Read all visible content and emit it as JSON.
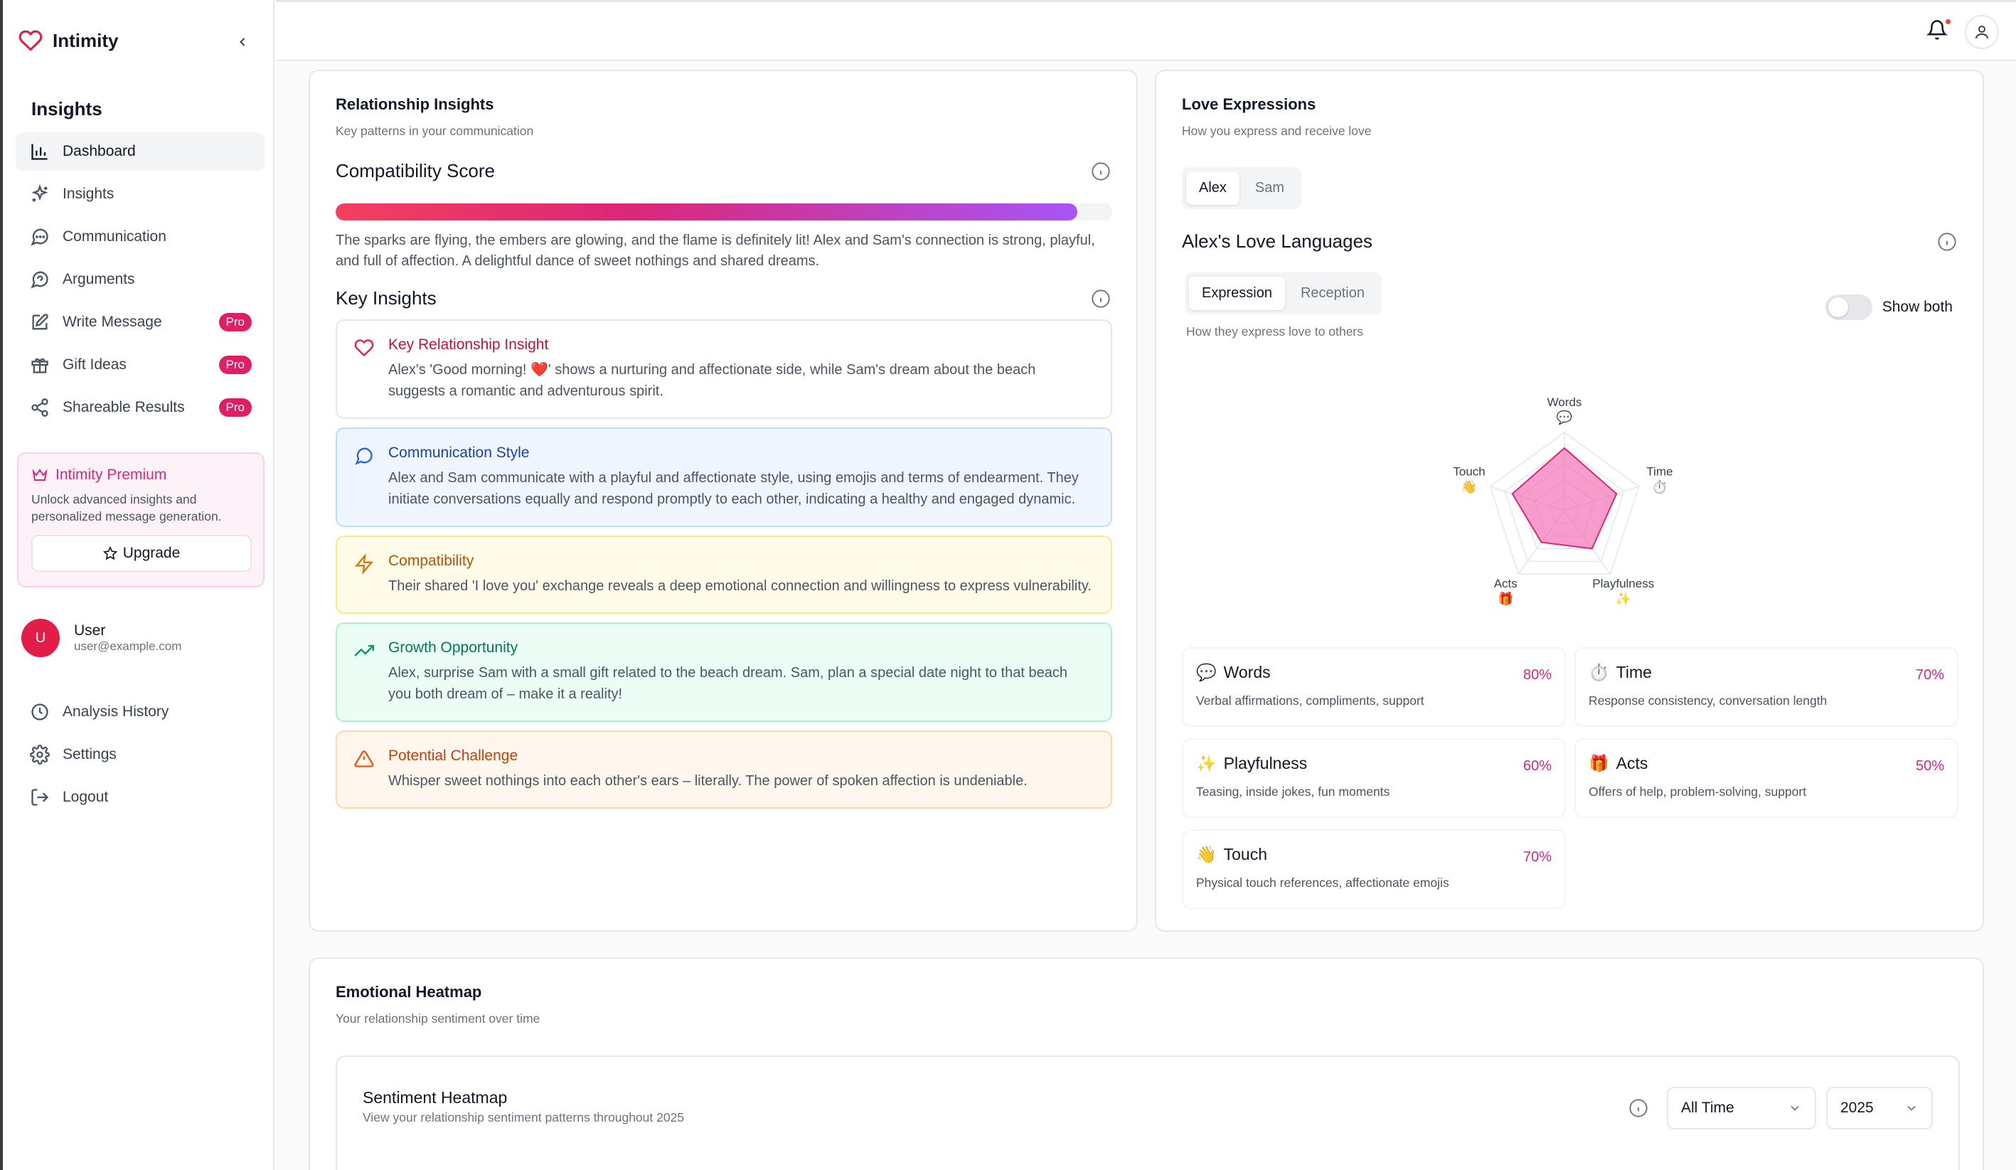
{
  "app": {
    "name": "Intimity"
  },
  "sidebar": {
    "section_title": "Insights",
    "items": [
      {
        "label": "Dashboard",
        "icon": "bar-chart-icon"
      },
      {
        "label": "Insights",
        "icon": "sparkles-icon"
      },
      {
        "label": "Communication",
        "icon": "message-circle-icon"
      },
      {
        "label": "Arguments",
        "icon": "message-alert-icon"
      },
      {
        "label": "Write Message",
        "icon": "edit-icon",
        "badge": "Pro"
      },
      {
        "label": "Gift Ideas",
        "icon": "gift-icon",
        "badge": "Pro"
      },
      {
        "label": "Shareable Results",
        "icon": "share-icon",
        "badge": "Pro"
      }
    ],
    "premium": {
      "title": "Intimity Premium",
      "desc": "Unlock advanced insights and personalized message generation.",
      "button": "Upgrade"
    },
    "user": {
      "initial": "U",
      "name": "User",
      "email": "user@example.com"
    },
    "bottom_items": [
      {
        "label": "Analysis History",
        "icon": "clock-icon"
      },
      {
        "label": "Settings",
        "icon": "gear-icon"
      },
      {
        "label": "Logout",
        "icon": "logout-icon"
      }
    ]
  },
  "relationship_insights": {
    "title": "Relationship Insights",
    "subtitle": "Key patterns in your communication",
    "compat_title": "Compatibility Score",
    "compat_score_fraction": 0.955,
    "compat_desc": "The sparks are flying, the embers are glowing, and the flame is definitely lit! Alex and Sam's connection is strong, playful, and full of affection. A delightful dance of sweet nothings and shared dreams.",
    "key_insights_title": "Key Insights",
    "insights": [
      {
        "title": "Key Relationship Insight",
        "text": "Alex's 'Good morning! ❤️' shows a nurturing and affectionate side, while Sam's dream about the beach suggests a romantic and adventurous spirit."
      },
      {
        "title": "Communication Style",
        "text": "Alex and Sam communicate with a playful and affectionate style, using emojis and terms of endearment. They initiate conversations equally and respond promptly to each other, indicating a healthy and engaged dynamic."
      },
      {
        "title": "Compatibility",
        "text": "Their shared 'I love you' exchange reveals a deep emotional connection and willingness to express vulnerability."
      },
      {
        "title": "Growth Opportunity",
        "text": "Alex, surprise Sam with a small gift related to the beach dream. Sam, plan a special date night to that beach you both dream of – make it a reality!"
      },
      {
        "title": "Potential Challenge",
        "text": "Whisper sweet nothings into each other's ears – literally. The power of spoken affection is undeniable."
      }
    ]
  },
  "love_expressions": {
    "title": "Love Expressions",
    "subtitle": "How you express and receive love",
    "people": [
      "Alex",
      "Sam"
    ],
    "active_person": "Alex",
    "languages_title": "Alex's Love Languages",
    "modes": [
      "Expression",
      "Reception"
    ],
    "mode_desc": "How they express love to others",
    "toggle_label": "Show both",
    "radar": {
      "axes": [
        {
          "label": "Words",
          "emoji": "💬",
          "value": 80
        },
        {
          "label": "Time",
          "emoji": "⏱️",
          "value": 70
        },
        {
          "label": "Playfulness",
          "emoji": "✨",
          "value": 60
        },
        {
          "label": "Acts",
          "emoji": "🎁",
          "value": 50
        },
        {
          "label": "Touch",
          "emoji": "👋",
          "value": 70
        }
      ],
      "max": 100,
      "fill_color": "#f472b6"
    },
    "languages": [
      {
        "emoji": "💬",
        "name": "Words",
        "pct": "80%",
        "desc": "Verbal affirmations, compliments, support"
      },
      {
        "emoji": "⏱️",
        "name": "Time",
        "pct": "70%",
        "desc": "Response consistency, conversation length"
      },
      {
        "emoji": "✨",
        "name": "Playfulness",
        "pct": "60%",
        "desc": "Teasing, inside jokes, fun moments"
      },
      {
        "emoji": "🎁",
        "name": "Acts",
        "pct": "50%",
        "desc": "Offers of help, problem-solving, support"
      },
      {
        "emoji": "👋",
        "name": "Touch",
        "pct": "70%",
        "desc": "Physical touch references, affectionate emojis"
      }
    ]
  },
  "emotional_heatmap": {
    "title": "Emotional Heatmap",
    "subtitle": "Your relationship sentiment over time",
    "sentiment_title": "Sentiment Heatmap",
    "sentiment_sub": "View your relationship sentiment patterns throughout 2025",
    "range": "All Time",
    "year": "2025"
  },
  "colors": {
    "accent": "#db2777",
    "brand": "#e11d48"
  }
}
